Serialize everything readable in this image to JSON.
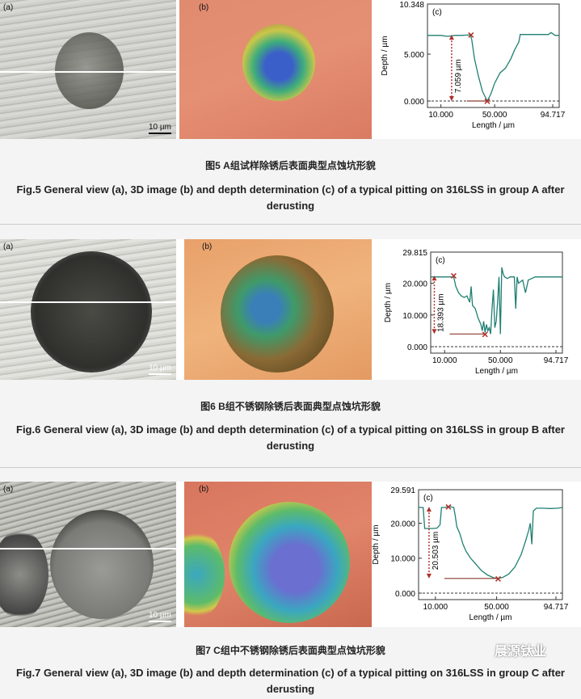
{
  "figures": [
    {
      "label_a": "(a)",
      "label_b": "(b)",
      "scale": "10 µm",
      "caption_cn": "图5   A组试样除锈后表面典型点蚀坑形貌",
      "caption_en": "Fig.5   General view (a), 3D image (b) and depth determination (c) of a typical pitting on 316LSS in group A after derusting"
    },
    {
      "label_a": "(a)",
      "label_b": "(b)",
      "scale": "10 µm",
      "caption_cn": "图6   B组不锈钢除锈后表面典型点蚀坑形貌",
      "caption_en": "Fig.6   General view (a), 3D image (b) and depth determination (c) of a typical pitting on 316LSS in group B after derusting"
    },
    {
      "label_a": "(a)",
      "label_b": "(b)",
      "scale": "10 µm",
      "caption_cn": "图7   C组中不锈钢除锈后表面典型点蚀坑形貌",
      "caption_en": "Fig.7   General view (a), 3D image (b) and depth determination (c) of a typical pitting on 316LSS in group C after derusting"
    }
  ],
  "watermark": "晨源钛业",
  "chart_data": [
    {
      "type": "line",
      "panel_label": "(c)",
      "xlabel": "Length / µm",
      "ylabel": "Depth / µm",
      "xticks": [
        "10.000",
        "50.000",
        "94.717"
      ],
      "yticks": [
        "0.000",
        "5.000"
      ],
      "ymax_label": "10.348",
      "xlim": [
        0,
        98
      ],
      "ylim": [
        0,
        10.348
      ],
      "grid": false,
      "line_color": "#1f7f72",
      "marker_color": "#b0302a",
      "depth_annotation": "7.059 µm",
      "reference_level": 0,
      "series": [
        {
          "x": [
            0,
            10,
            15,
            20,
            25,
            32,
            33,
            35,
            38,
            41,
            44.5,
            47,
            50,
            54,
            58,
            62,
            65,
            68,
            69,
            75,
            85,
            90,
            92,
            95,
            98
          ],
          "y": [
            7.0,
            7.0,
            6.9,
            7.0,
            7.0,
            7.06,
            6.5,
            4.5,
            2.6,
            1.0,
            0.0,
            0.7,
            1.9,
            3.0,
            3.5,
            4.5,
            5.5,
            6.3,
            7.1,
            7.1,
            7.1,
            7.1,
            7.3,
            7.0,
            7.0
          ]
        }
      ],
      "markers": [
        {
          "x": 32.4,
          "y": 7.06
        },
        {
          "x": 44.5,
          "y": 0.0
        }
      ]
    },
    {
      "type": "line",
      "panel_label": "(c)",
      "xlabel": "Length / µm",
      "ylabel": "Depth / µm",
      "xticks": [
        "10.000",
        "50.000",
        "94.717"
      ],
      "yticks": [
        "0.000",
        "10.000",
        "20.000"
      ],
      "ymax_label": "29.815",
      "xlim": [
        0,
        94.5
      ],
      "ylim": [
        0,
        29.815
      ],
      "grid": false,
      "line_color": "#1f7f72",
      "marker_color": "#b0302a",
      "depth_annotation": "18.393 µm",
      "reference_level": 0,
      "series": [
        {
          "x": [
            0,
            8,
            16.5,
            18,
            20,
            22,
            24,
            26,
            28,
            29,
            30,
            32,
            34,
            36,
            37,
            38,
            39,
            40,
            41,
            42,
            43,
            44,
            45,
            46,
            47,
            48,
            49,
            50,
            51,
            52,
            53,
            55,
            57,
            60,
            61,
            62,
            63,
            66,
            68,
            70,
            75,
            80,
            85,
            94.5
          ],
          "y": [
            22,
            22,
            22,
            19,
            17,
            16,
            15.5,
            16,
            14,
            19,
            13,
            12,
            9,
            7,
            5,
            8,
            4.5,
            7,
            5,
            6,
            4,
            12,
            18,
            6,
            8,
            14,
            22,
            4,
            25,
            23,
            22,
            21.5,
            22,
            22,
            12,
            22,
            20,
            21,
            17,
            21,
            22,
            22,
            22,
            22
          ]
        }
      ],
      "markers": [
        {
          "x": 16.5,
          "y": 22.4
        },
        {
          "x": 39,
          "y": 4.0
        }
      ]
    },
    {
      "type": "line",
      "panel_label": "(c)",
      "xlabel": "Length / µm",
      "ylabel": "Depth / µm",
      "xticks": [
        "10.000",
        "50.000",
        "94.717"
      ],
      "yticks": [
        "0.000",
        "10.000",
        "20.000"
      ],
      "ymax_label": "29.591",
      "xlim": [
        -1,
        93
      ],
      "ylim": [
        0,
        29.591
      ],
      "grid": false,
      "line_color": "#1f7f72",
      "marker_color": "#b0302a",
      "depth_annotation": "20.503 µm",
      "reference_level": 0,
      "series": [
        {
          "x": [
            -1,
            2,
            3,
            5,
            8,
            11,
            13,
            14,
            16,
            19,
            22,
            23,
            24,
            26,
            28,
            30,
            33,
            36,
            40,
            44,
            48,
            51,
            54,
            58,
            62,
            66,
            69,
            71,
            72,
            73,
            74,
            76,
            80,
            85,
            90,
            93
          ],
          "y": [
            24.5,
            24.5,
            18.5,
            18.5,
            18.5,
            18.6,
            19.5,
            24.5,
            24.5,
            24.8,
            24.5,
            22,
            19,
            17,
            14,
            12,
            10,
            8.5,
            6.5,
            5.2,
            4.4,
            4.2,
            4.5,
            5.5,
            7.5,
            11,
            15,
            18,
            20,
            14,
            23.5,
            24.3,
            24.3,
            24.2,
            24.3,
            24.5
          ]
        }
      ],
      "markers": [
        {
          "x": 18.5,
          "y": 24.7
        },
        {
          "x": 51,
          "y": 4.2
        }
      ]
    }
  ]
}
